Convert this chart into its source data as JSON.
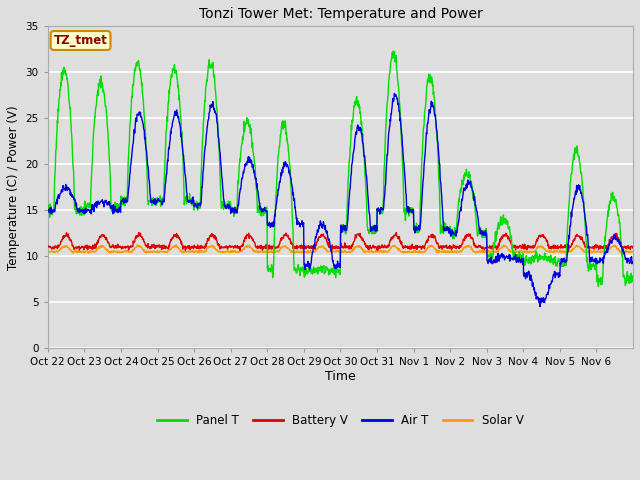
{
  "title": "Tonzi Tower Met: Temperature and Power",
  "xlabel": "Time",
  "ylabel": "Temperature (C) / Power (V)",
  "ylim": [
    0,
    35
  ],
  "yticks": [
    0,
    5,
    10,
    15,
    20,
    25,
    30,
    35
  ],
  "annotation_text": "TZ_tmet",
  "annotation_color": "#8B0000",
  "annotation_bg": "#FFFFCC",
  "annotation_border": "#CC8800",
  "colors": {
    "Panel T": "#00DD00",
    "Battery V": "#DD0000",
    "Air T": "#0000DD",
    "Solar V": "#FF9900"
  },
  "bg_color": "#DEDEDE",
  "grid_color": "#FFFFFF",
  "xtick_labels": [
    "Oct 22",
    "Oct 23",
    "Oct 24",
    "Oct 25",
    "Oct 26",
    "Oct 27",
    "Oct 28",
    "Oct 29",
    "Oct 30",
    "Oct 31",
    "Nov 1",
    "Nov 2",
    "Nov 3",
    "Nov 4",
    "Nov 5",
    "Nov 6"
  ],
  "n_days": 16,
  "panel_peaks": [
    30.2,
    29.0,
    31.0,
    30.5,
    31.0,
    24.5,
    24.5,
    8.5,
    27.0,
    32.0,
    29.5,
    19.0,
    14.0,
    10.0,
    21.5,
    16.5
  ],
  "air_peaks": [
    17.5,
    16.0,
    25.5,
    25.5,
    26.5,
    20.5,
    20.0,
    13.5,
    24.0,
    27.5,
    26.5,
    18.0,
    10.0,
    5.0,
    17.5,
    12.0
  ],
  "panel_mins": [
    15.0,
    15.5,
    16.0,
    16.0,
    15.5,
    15.0,
    8.5,
    8.5,
    13.0,
    15.0,
    13.0,
    12.5,
    10.0,
    9.5,
    9.0,
    7.5
  ],
  "air_mins": [
    15.0,
    15.0,
    16.0,
    16.0,
    15.5,
    15.0,
    13.5,
    9.0,
    13.0,
    15.0,
    13.0,
    12.5,
    9.5,
    8.0,
    9.5,
    9.5
  ]
}
